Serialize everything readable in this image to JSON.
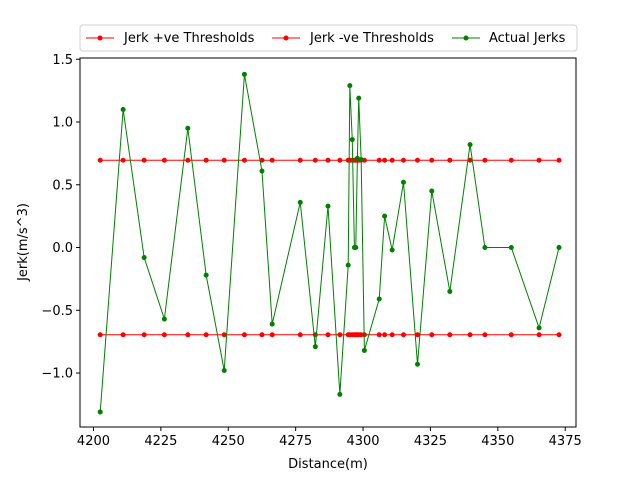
{
  "chart_data": {
    "type": "line",
    "title": "",
    "xlabel": "Distance(m)",
    "ylabel": "Jerk(m/s^3)",
    "xlim": [
      4195,
      4379
    ],
    "ylim": [
      -1.43,
      1.51
    ],
    "xticks": [
      4200,
      4225,
      4250,
      4275,
      4300,
      4325,
      4350,
      4375
    ],
    "yticks": [
      -1.0,
      -0.5,
      0.0,
      0.5,
      1.0,
      1.5
    ],
    "xtick_labels": [
      "4200",
      "4225",
      "4250",
      "4275",
      "4300",
      "4325",
      "4350",
      "4375"
    ],
    "ytick_labels": [
      "−1.0",
      "−0.5",
      "0.0",
      "0.5",
      "1.0",
      "1.5"
    ],
    "grid": false,
    "legend_position": "top",
    "x": [
      4202.5,
      4211,
      4218.8,
      4226.3,
      4235,
      4241.8,
      4248.5,
      4256,
      4262.5,
      4266.3,
      4276.7,
      4282.3,
      4287,
      4291.4,
      4294.5,
      4295.1,
      4296,
      4296.8,
      4297.3,
      4297.9,
      4298.4,
      4299.3,
      4300.5,
      4306,
      4308,
      4310.8,
      4315,
      4320.2,
      4325.5,
      4332.2,
      4339.7,
      4345.2,
      4355,
      4365.3,
      4372.7
    ],
    "series": [
      {
        "name": "Jerk +ve Thresholds",
        "color": "#ff0000",
        "values": [
          0.695,
          0.695,
          0.695,
          0.695,
          0.695,
          0.695,
          0.695,
          0.695,
          0.695,
          0.695,
          0.695,
          0.695,
          0.695,
          0.695,
          0.695,
          0.695,
          0.695,
          0.695,
          0.695,
          0.695,
          0.695,
          0.695,
          0.695,
          0.695,
          0.695,
          0.695,
          0.695,
          0.695,
          0.695,
          0.695,
          0.695,
          0.695,
          0.695,
          0.695,
          0.695
        ]
      },
      {
        "name": "Jerk -ve Thresholds",
        "color": "#ff0000",
        "values": [
          -0.695,
          -0.695,
          -0.695,
          -0.695,
          -0.695,
          -0.695,
          -0.695,
          -0.695,
          -0.695,
          -0.695,
          -0.695,
          -0.695,
          -0.695,
          -0.695,
          -0.695,
          -0.695,
          -0.695,
          -0.695,
          -0.695,
          -0.695,
          -0.695,
          -0.695,
          -0.695,
          -0.695,
          -0.695,
          -0.695,
          -0.695,
          -0.695,
          -0.695,
          -0.695,
          -0.695,
          -0.695,
          -0.695,
          -0.695,
          -0.695
        ]
      },
      {
        "name": "Actual Jerks",
        "color": "#008000",
        "values": [
          -1.31,
          1.1,
          -0.08,
          -0.57,
          0.95,
          -0.22,
          -0.98,
          1.38,
          0.61,
          -0.61,
          0.36,
          -0.79,
          0.33,
          -1.17,
          -0.14,
          1.29,
          0.86,
          0.0,
          0.0,
          0.71,
          1.19,
          0.7,
          -0.82,
          -0.41,
          0.25,
          -0.02,
          0.52,
          -0.93,
          0.45,
          -0.35,
          0.82,
          0.0,
          0.0,
          -0.64,
          0.0
        ]
      }
    ]
  }
}
